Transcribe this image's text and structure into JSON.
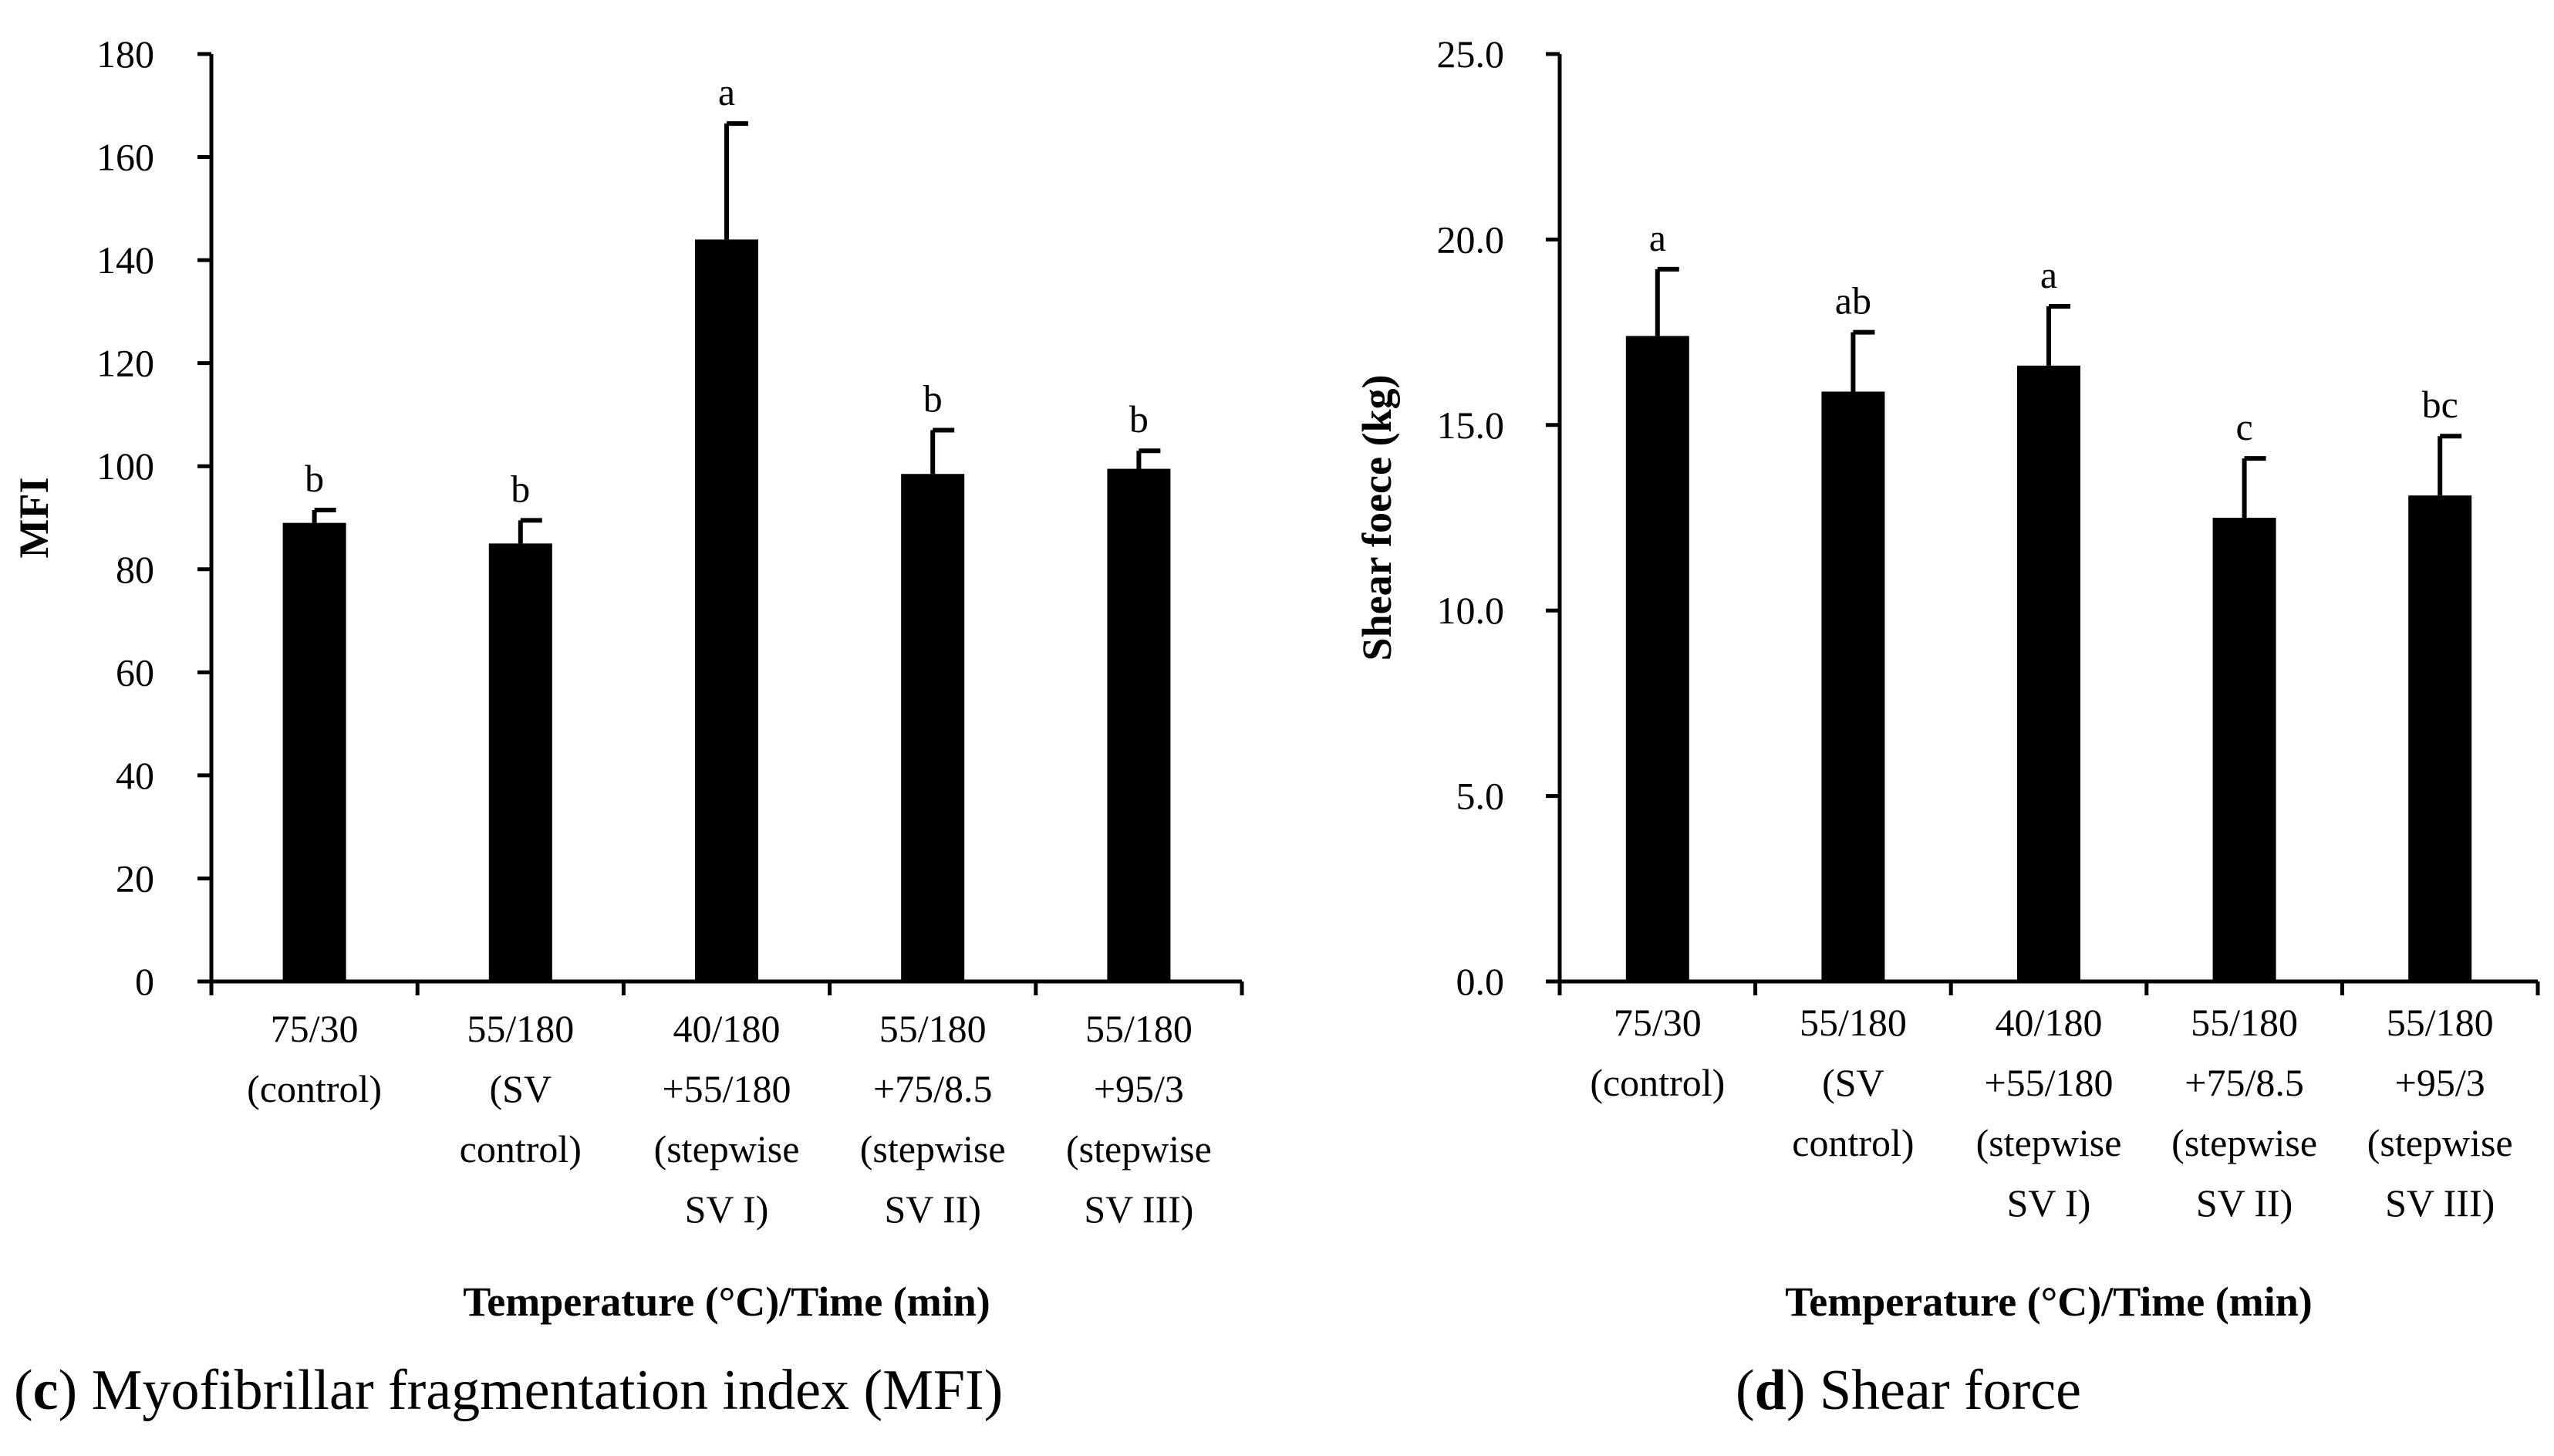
{
  "chart_data": [
    {
      "type": "bar",
      "panel_letter": "c",
      "caption": "Myofibrillar fragmentation index (MFI)",
      "title": "",
      "xlabel": "Temperature (°C)/Time (min)",
      "ylabel": "MFI",
      "ylim": [
        0,
        180
      ],
      "yticks": [
        "0",
        "20",
        "40",
        "60",
        "80",
        "100",
        "120",
        "140",
        "160",
        "180"
      ],
      "categories": [
        [
          "75/30",
          "(control)"
        ],
        [
          "55/180",
          "(SV",
          "control)"
        ],
        [
          "40/180",
          "+55/180",
          "(stepwise",
          "SV I)"
        ],
        [
          "55/180",
          "+75/8.5",
          "(stepwise",
          "SV II)"
        ],
        [
          "55/180",
          "+95/3",
          "(stepwise",
          "SV III)"
        ]
      ],
      "values": [
        89,
        85,
        144,
        98.5,
        99.5
      ],
      "errors": [
        2.5,
        4.5,
        22.5,
        8.5,
        3.5
      ],
      "significance": [
        "b",
        "b",
        "a",
        "b",
        "b"
      ]
    },
    {
      "type": "bar",
      "panel_letter": "d",
      "caption": "Shear force",
      "title": "",
      "xlabel": "Temperature (°C)/Time (min)",
      "ylabel": "Shear foece (kg)",
      "ylim": [
        0,
        25
      ],
      "yticks": [
        "0.0",
        "5.0",
        "10.0",
        "15.0",
        "20.0",
        "25.0"
      ],
      "categories": [
        [
          "75/30",
          "(control)"
        ],
        [
          "55/180",
          "(SV",
          "control)"
        ],
        [
          "40/180",
          "+55/180",
          "(stepwise",
          "SV I)"
        ],
        [
          "55/180",
          "+75/8.5",
          "(stepwise",
          "SV II)"
        ],
        [
          "55/180",
          "+95/3",
          "(stepwise",
          "SV III)"
        ]
      ],
      "values": [
        17.4,
        15.9,
        16.6,
        12.5,
        13.1
      ],
      "errors": [
        1.8,
        1.6,
        1.6,
        1.6,
        1.6
      ],
      "significance": [
        "a",
        "ab",
        "a",
        "c",
        "bc"
      ]
    }
  ],
  "colors": {
    "bar": "#000000",
    "axis": "#000000",
    "background": "#ffffff"
  }
}
